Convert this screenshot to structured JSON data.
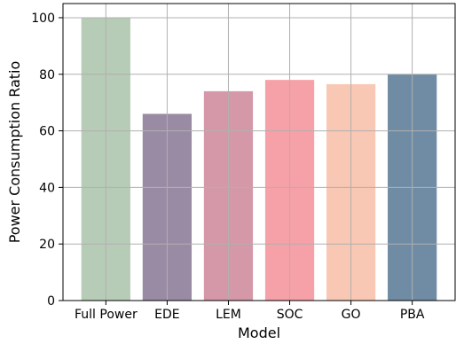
{
  "chart_data": {
    "type": "bar",
    "categories": [
      "Full Power",
      "EDE",
      "LEM",
      "SOC",
      "GO",
      "PBA"
    ],
    "values": [
      100,
      66,
      74,
      78,
      76.5,
      80
    ],
    "colors": [
      "#b6ccb6",
      "#9a8ba4",
      "#d498a8",
      "#f6a1a8",
      "#f9c8b4",
      "#6f8ca4"
    ],
    "title": "",
    "xlabel": "Model",
    "ylabel": "Power Consumption Ratio",
    "ylim": [
      0,
      105
    ],
    "yticks": [
      0,
      20,
      40,
      60,
      80,
      100
    ],
    "grid": true,
    "legend": "none"
  }
}
